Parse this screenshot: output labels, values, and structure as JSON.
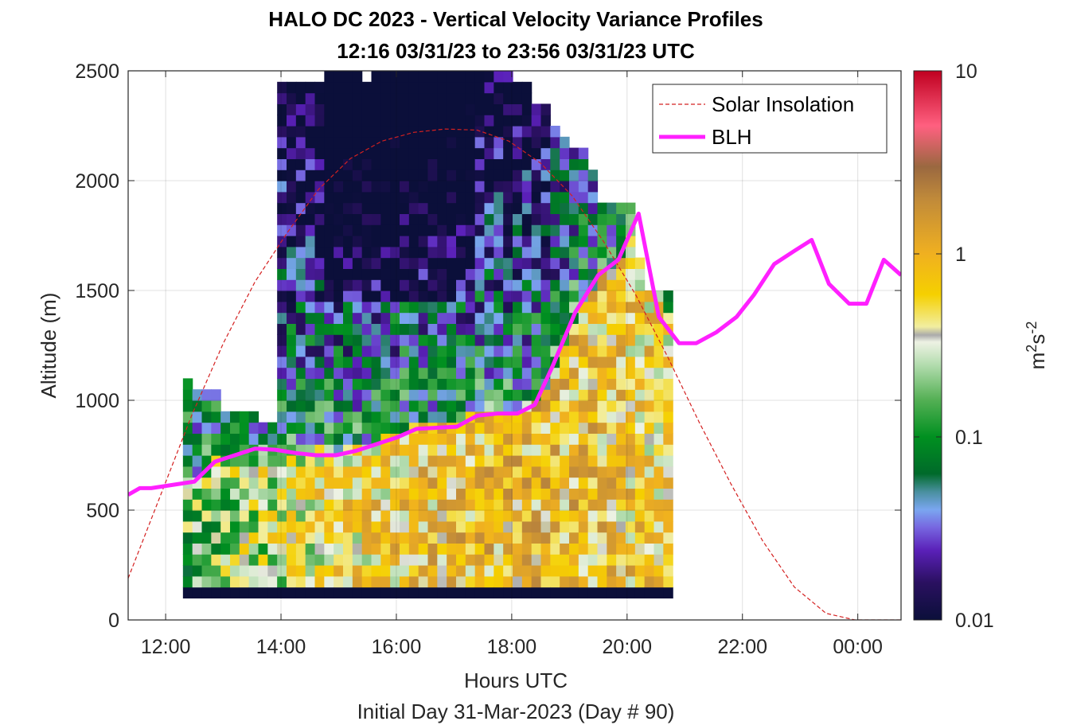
{
  "chart_data": {
    "type": "heatmap",
    "title": "HALO DC 2023 - Vertical Velocity Variance Profiles",
    "subtitle": "12:16 03/31/23 to 23:56 03/31/23  UTC",
    "xlabel": "Hours UTC",
    "xlabel2": "Initial Day 31-Mar-2023 (Day # 90)",
    "ylabel": "Altitude (m)",
    "xlim_hours": [
      11.35,
      24.75
    ],
    "ylim": [
      0,
      2500
    ],
    "x_ticks": [
      {
        "hour": 12,
        "label": "12:00"
      },
      {
        "hour": 14,
        "label": "14:00"
      },
      {
        "hour": 16,
        "label": "16:00"
      },
      {
        "hour": 18,
        "label": "18:00"
      },
      {
        "hour": 20,
        "label": "20:00"
      },
      {
        "hour": 22,
        "label": "22:00"
      },
      {
        "hour": 24,
        "label": "00:00"
      }
    ],
    "y_ticks": [
      {
        "value": 0,
        "label": "0"
      },
      {
        "value": 500,
        "label": "500"
      },
      {
        "value": 1000,
        "label": "1000"
      },
      {
        "value": 1500,
        "label": "1500"
      },
      {
        "value": 2000,
        "label": "2000"
      },
      {
        "value": 2500,
        "label": "2500"
      }
    ],
    "grid": true,
    "colorbar": {
      "scale": "log",
      "range": [
        0.01,
        10
      ],
      "label": "m2s-2",
      "label_main": "m",
      "label_sup1": "2",
      "label_mid": "s",
      "label_sup2": "-2",
      "ticks": [
        {
          "value": 0.01,
          "label": "0.01"
        },
        {
          "value": 0.1,
          "label": "0.1"
        },
        {
          "value": 1,
          "label": "1"
        },
        {
          "value": 10,
          "label": "10"
        }
      ],
      "stops": [
        {
          "value": 0.01,
          "color": "#0b0f3a"
        },
        {
          "value": 0.016,
          "color": "#2a1060"
        },
        {
          "value": 0.024,
          "color": "#5a20b8"
        },
        {
          "value": 0.032,
          "color": "#7766e0"
        },
        {
          "value": 0.04,
          "color": "#7aa6f0"
        },
        {
          "value": 0.05,
          "color": "#4a90a0"
        },
        {
          "value": 0.063,
          "color": "#006a2a"
        },
        {
          "value": 0.1,
          "color": "#009020"
        },
        {
          "value": 0.16,
          "color": "#55b055"
        },
        {
          "value": 0.25,
          "color": "#b5ddb0"
        },
        {
          "value": 0.33,
          "color": "#eef2e4"
        },
        {
          "value": 0.36,
          "color": "#aaaaaa"
        },
        {
          "value": 0.4,
          "color": "#f2eea0"
        },
        {
          "value": 0.6,
          "color": "#f5d000"
        },
        {
          "value": 1.0,
          "color": "#f0b020"
        },
        {
          "value": 2.0,
          "color": "#c08a3a"
        },
        {
          "value": 3.0,
          "color": "#9a6840"
        },
        {
          "value": 5.0,
          "color": "#ff6080"
        },
        {
          "value": 10.0,
          "color": "#c00020"
        }
      ]
    },
    "heatmap": {
      "time_start_hour": 12.3,
      "time_step_hours": 0.1633,
      "alt_step_m": 50,
      "base_alt_m": 100,
      "n_time": 52,
      "n_alt": 49,
      "data_top_m": [
        1100,
        1050,
        1050,
        1050,
        950,
        950,
        950,
        950,
        900,
        900,
        2450,
        2450,
        2450,
        2450,
        2450,
        2500,
        2500,
        2500,
        2500,
        2450,
        2500,
        2500,
        2500,
        2500,
        2500,
        2500,
        2500,
        2500,
        2500,
        2500,
        2500,
        2500,
        2500,
        2500,
        2500,
        2450,
        2450,
        2350,
        2350,
        2250,
        2200,
        2150,
        2150,
        2050,
        1900,
        1900,
        1900,
        1900,
        1650,
        1500,
        1500,
        1500
      ]
    },
    "series": [
      {
        "name": "Solar Insolation",
        "style": "dashed",
        "color": "#d42020",
        "x": [
          11.35,
          11.9,
          12.45,
          13.0,
          13.55,
          14.1,
          14.65,
          15.2,
          15.75,
          16.3,
          16.85,
          17.4,
          17.95,
          18.5,
          19.05,
          19.6,
          20.15,
          20.7,
          21.25,
          21.8,
          22.35,
          22.9,
          23.45,
          23.95,
          24.45,
          24.75
        ],
        "y": [
          190,
          560,
          930,
          1260,
          1540,
          1760,
          1960,
          2100,
          2180,
          2220,
          2235,
          2230,
          2180,
          2080,
          1930,
          1720,
          1480,
          1200,
          900,
          620,
          360,
          150,
          30,
          0,
          0,
          0
        ]
      },
      {
        "name": "BLH",
        "style": "solid",
        "color": "#ff20ff",
        "x": [
          11.35,
          11.55,
          11.75,
          12.0,
          12.25,
          12.5,
          12.85,
          13.2,
          13.55,
          13.9,
          14.25,
          14.6,
          14.95,
          15.3,
          15.65,
          16.0,
          16.35,
          16.7,
          17.05,
          17.4,
          17.75,
          18.1,
          18.4,
          18.7,
          19.1,
          19.5,
          19.85,
          20.2,
          20.55,
          20.9,
          21.2,
          21.55,
          21.9,
          22.2,
          22.55,
          22.9,
          23.2,
          23.5,
          23.85,
          24.15,
          24.45,
          24.75
        ],
        "y": [
          570,
          600,
          600,
          610,
          620,
          630,
          720,
          750,
          780,
          775,
          760,
          750,
          750,
          770,
          800,
          830,
          870,
          875,
          880,
          930,
          940,
          940,
          980,
          1150,
          1400,
          1570,
          1640,
          1850,
          1380,
          1260,
          1260,
          1310,
          1380,
          1480,
          1620,
          1680,
          1730,
          1530,
          1440,
          1440,
          1640,
          1570
        ]
      }
    ],
    "legend": {
      "placement": "top-right",
      "entries": [
        {
          "label": "Solar Insolation",
          "style": "dashed",
          "color": "#d42020"
        },
        {
          "label": "BLH",
          "style": "solid",
          "color": "#ff20ff"
        }
      ]
    }
  }
}
